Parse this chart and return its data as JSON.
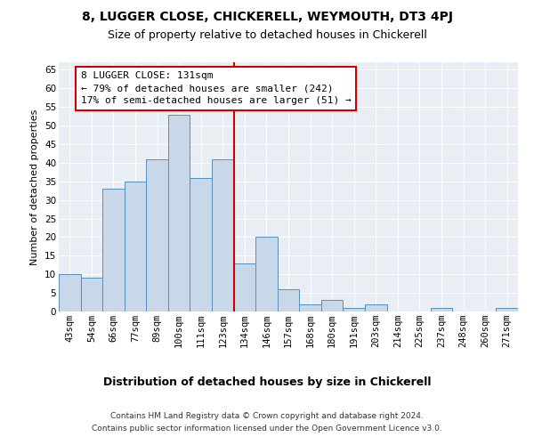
{
  "title1": "8, LUGGER CLOSE, CHICKERELL, WEYMOUTH, DT3 4PJ",
  "title2": "Size of property relative to detached houses in Chickerell",
  "xlabel": "Distribution of detached houses by size in Chickerell",
  "ylabel": "Number of detached properties",
  "footer1": "Contains HM Land Registry data © Crown copyright and database right 2024.",
  "footer2": "Contains public sector information licensed under the Open Government Licence v3.0.",
  "bar_labels": [
    "43sqm",
    "54sqm",
    "66sqm",
    "77sqm",
    "89sqm",
    "100sqm",
    "111sqm",
    "123sqm",
    "134sqm",
    "146sqm",
    "157sqm",
    "168sqm",
    "180sqm",
    "191sqm",
    "203sqm",
    "214sqm",
    "225sqm",
    "237sqm",
    "248sqm",
    "260sqm",
    "271sqm"
  ],
  "bar_values": [
    10,
    9,
    33,
    35,
    41,
    53,
    36,
    41,
    13,
    20,
    6,
    2,
    3,
    1,
    2,
    0,
    0,
    1,
    0,
    0,
    1
  ],
  "bar_color": "#c8d8e8",
  "bar_edgecolor": "#5590bb",
  "annotation_text": "8 LUGGER CLOSE: 131sqm\n← 79% of detached houses are smaller (242)\n17% of semi-detached houses are larger (51) →",
  "vline_color": "#cc0000",
  "annotation_box_color": "#cc0000",
  "ylim": [
    0,
    67
  ],
  "yticks": [
    0,
    5,
    10,
    15,
    20,
    25,
    30,
    35,
    40,
    45,
    50,
    55,
    60,
    65
  ],
  "background_color": "#e8eef4",
  "grid_color": "#ffffff",
  "title1_fontsize": 10,
  "title2_fontsize": 9,
  "xlabel_fontsize": 9,
  "ylabel_fontsize": 8,
  "tick_fontsize": 7.5,
  "annotation_fontsize": 8,
  "footer_fontsize": 6.5,
  "vline_index": 7.5
}
